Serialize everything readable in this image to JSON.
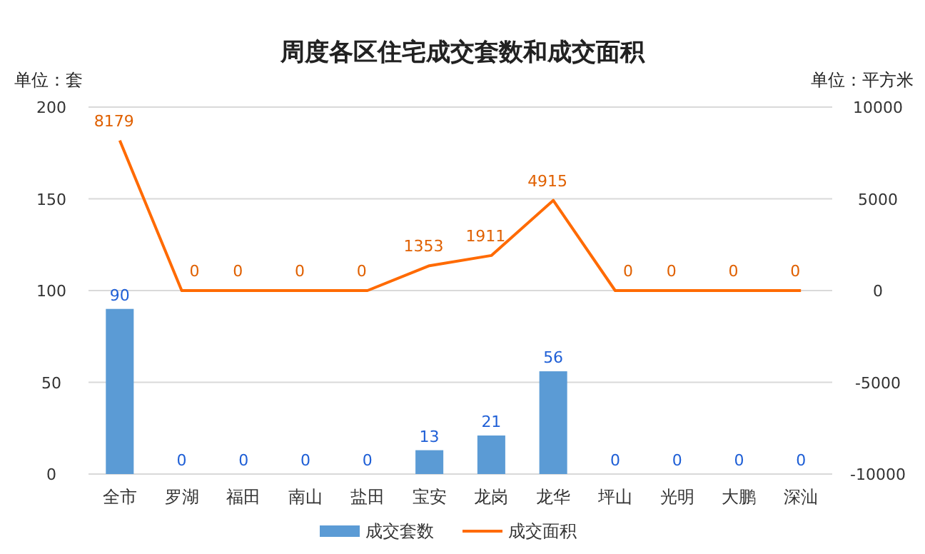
{
  "chart_data": {
    "type": "bar",
    "title": "周度各区住宅成交套数和成交面积",
    "ylabel": "单位：套",
    "y2label": "单位：平方米",
    "categories": [
      "全市",
      "罗湖",
      "福田",
      "南山",
      "盐田",
      "宝安",
      "龙岗",
      "龙华",
      "坪山",
      "光明",
      "大鹏",
      "深汕"
    ],
    "series": [
      {
        "name": "成交套数",
        "color": "#5b9bd5",
        "values": [
          90,
          0,
          0,
          0,
          0,
          13,
          21,
          56,
          0,
          0,
          0,
          0
        ]
      },
      {
        "name": "成交面积",
        "type": "line",
        "axis": "y2",
        "color": "#ff6a00",
        "values": [
          8179,
          0,
          0,
          0,
          0,
          1353,
          1911,
          4915,
          0,
          0,
          0,
          0
        ]
      }
    ],
    "ylim": [
      0,
      200
    ],
    "yticks": [
      0,
      50,
      100,
      150,
      200
    ],
    "y2lim": [
      -10000,
      10000
    ],
    "y2ticks": [
      -10000,
      -5000,
      0,
      5000,
      10000
    ],
    "grid": "y",
    "legend": "bottom",
    "data_labels": true,
    "marker": "none"
  }
}
